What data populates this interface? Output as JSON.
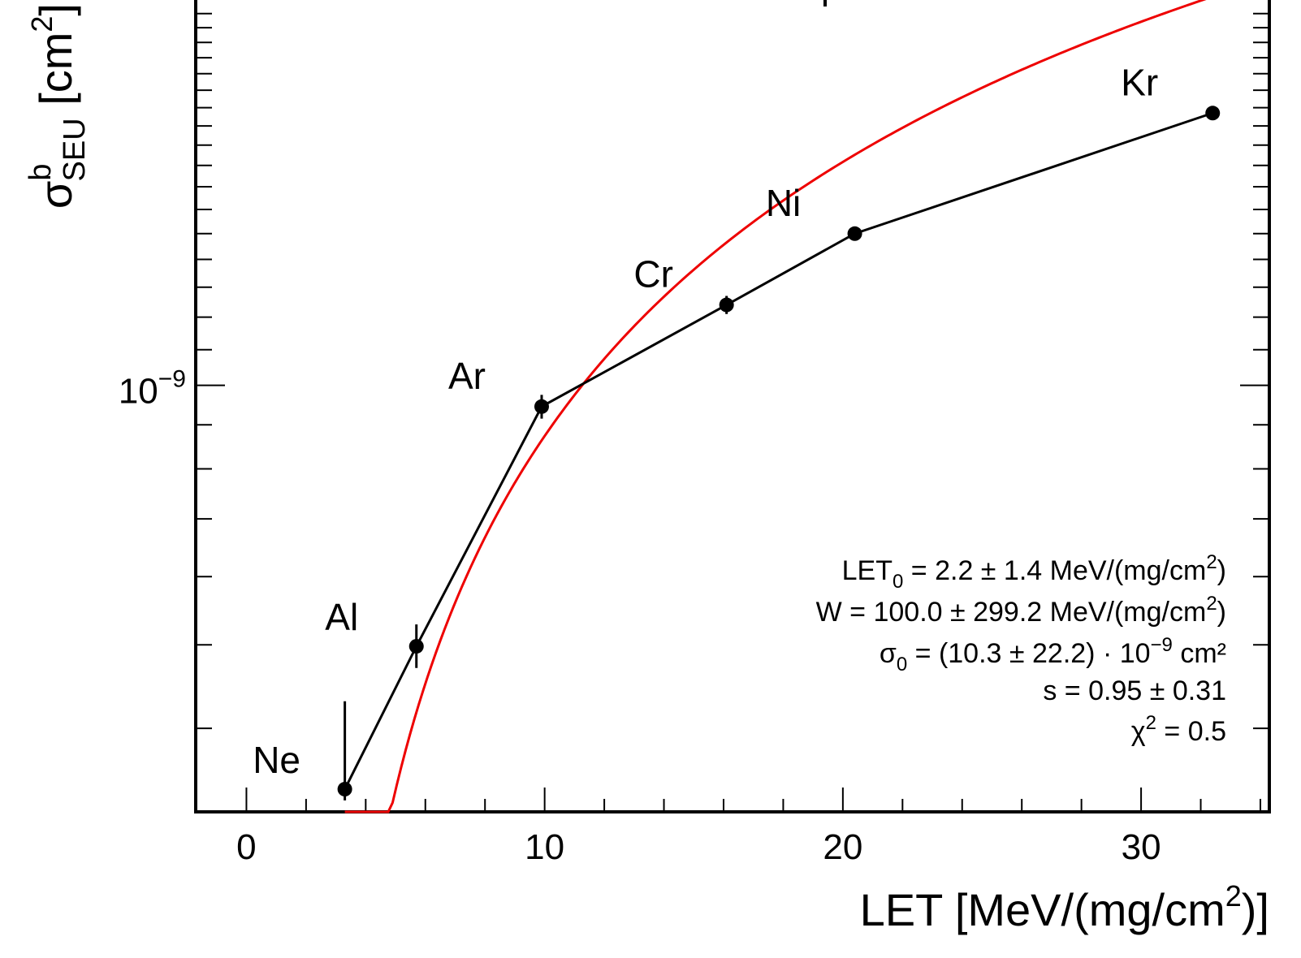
{
  "chart_data": {
    "type": "scatter",
    "x_axis": {
      "label": "LET [MeV/(mg/cm",
      "label_sup": "2",
      "label_end": ")]",
      "range": [
        -1.7,
        34.3
      ],
      "ticks": [
        0,
        10,
        20,
        30
      ],
      "tick_labels": [
        "0",
        "10",
        "20",
        "30"
      ],
      "minor_step": 2
    },
    "y_axis": {
      "label_sigma": "σ",
      "label_sup": "b",
      "label_sub": "SEU",
      "label_unit": " [cm",
      "label_unit_sup": "2",
      "label_unit_end": "]",
      "scale": "log",
      "range": [
        3.2e-10,
        2.8e-09
      ],
      "major_tick_label_base": "10",
      "major_tick_label_exp": "−9"
    },
    "series": [
      {
        "style": "markers with error bars, joined by black line",
        "color": "#000000",
        "points": [
          {
            "ion": "Ne",
            "x": 3.3,
            "y": 3.4e-10,
            "y_err_low": 1e-11,
            "y_err_high": 9e-11
          },
          {
            "ion": "Al",
            "x": 5.7,
            "y": 4.98e-10,
            "y_err_low": 2.8e-11,
            "y_err_high": 3e-11
          },
          {
            "ion": "Ar",
            "x": 9.9,
            "y": 9.45e-10,
            "y_err_low": 3e-11,
            "y_err_high": 3e-11
          },
          {
            "ion": "Cr",
            "x": 16.1,
            "y": 1.24e-09,
            "y_err_low": 3e-11,
            "y_err_high": 3e-11
          },
          {
            "ion": "Ni",
            "x": 20.4,
            "y": 1.5e-09,
            "y_err_low": 1e-11,
            "y_err_high": 1e-11
          },
          {
            "ion": "Kr",
            "x": 32.4,
            "y": 2.07e-09,
            "y_err_low": 1e-11,
            "y_err_high": 1e-11
          }
        ]
      },
      {
        "style": "Weibull fit curve",
        "color": "#ee0000",
        "x_range": [
          3.3,
          32.4
        ],
        "params": {
          "LET0": 2.2,
          "W": 100.0,
          "sigma0": 1.03e-08,
          "s": 0.95
        }
      }
    ],
    "fit_results": [
      {
        "lhs": "LET",
        "lhs_sub": "0",
        "rhs": " = 2.2 ± 1.4  MeV/(mg/cm",
        "rhs_sup": "2",
        "rhs_end": ")"
      },
      {
        "lhs": "W",
        "lhs_sub": "",
        "rhs": " = 100.0 ± 299.2  MeV/(mg/cm",
        "rhs_sup": "2",
        "rhs_end": ")"
      },
      {
        "lhs": "σ",
        "lhs_sub": "0",
        "rhs": " = (10.3 ± 22.2) · 10",
        "rhs_sup": "−9",
        "rhs_end": "  cm²"
      },
      {
        "lhs": "s",
        "lhs_sub": "",
        "rhs": " = 0.95 ± 0.31",
        "rhs_sup": "",
        "rhs_end": ""
      },
      {
        "lhs": "χ",
        "lhs_sub": "",
        "rhs": "",
        "rhs_sup": "2",
        "rhs_end": " = 0.5"
      }
    ],
    "grid": false,
    "legend": "none"
  }
}
